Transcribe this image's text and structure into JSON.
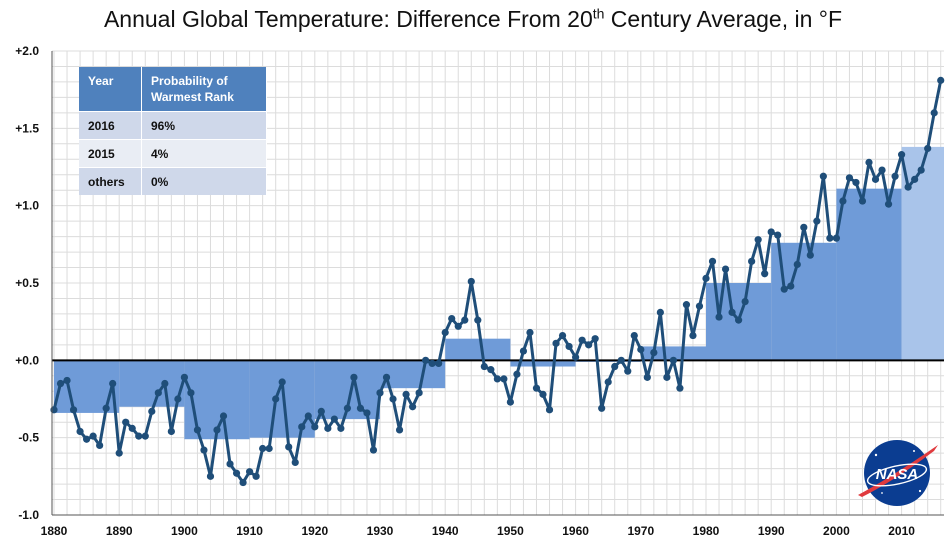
{
  "chart_data": {
    "type": "line",
    "title_main": "Annual Global Temperature: Difference From 20",
    "title_sup": "th",
    "title_end": " Century Average, in °F",
    "xlabel": "",
    "ylabel": "",
    "xlim": [
      1880,
      2016
    ],
    "ylim": [
      -1.0,
      2.0
    ],
    "y_ticks": [
      -1.0,
      -0.5,
      0.0,
      0.5,
      1.0,
      1.5,
      2.0
    ],
    "y_tick_labels": [
      "-1.0",
      "-0.5",
      "+0.0",
      "+0.5",
      "+1.0",
      "+1.5",
      "+2.0"
    ],
    "x_ticks": [
      1880,
      1890,
      1900,
      1910,
      1920,
      1930,
      1940,
      1950,
      1960,
      1970,
      1980,
      1990,
      2000,
      2010
    ],
    "x_tick_labels": [
      "1880",
      "1890",
      "1900",
      "1910",
      "1920",
      "1930",
      "1940",
      "1950",
      "1960",
      "1970",
      "1980",
      "1990",
      "2000",
      "2010"
    ],
    "grid": true,
    "colors": {
      "line": "#1f4e79",
      "bar": "#6f9bd8",
      "bar_light": "#a9c4ea",
      "zero_line": "#000000"
    },
    "decadal_averages": [
      {
        "start": 1880,
        "end": 1890,
        "value": -0.34
      },
      {
        "start": 1890,
        "end": 1900,
        "value": -0.3
      },
      {
        "start": 1900,
        "end": 1910,
        "value": -0.51
      },
      {
        "start": 1910,
        "end": 1920,
        "value": -0.5
      },
      {
        "start": 1920,
        "end": 1930,
        "value": -0.38
      },
      {
        "start": 1930,
        "end": 1940,
        "value": -0.18
      },
      {
        "start": 1940,
        "end": 1950,
        "value": 0.14
      },
      {
        "start": 1950,
        "end": 1960,
        "value": -0.04
      },
      {
        "start": 1960,
        "end": 1970,
        "value": -0.01
      },
      {
        "start": 1970,
        "end": 1980,
        "value": 0.09
      },
      {
        "start": 1980,
        "end": 1990,
        "value": 0.5
      },
      {
        "start": 1990,
        "end": 2000,
        "value": 0.76
      },
      {
        "start": 2000,
        "end": 2010,
        "value": 1.11
      },
      {
        "start": 2010,
        "end": 2017,
        "value": 1.38
      }
    ],
    "annual": {
      "x": [
        1880,
        1881,
        1882,
        1883,
        1884,
        1885,
        1886,
        1887,
        1888,
        1889,
        1890,
        1891,
        1892,
        1893,
        1894,
        1895,
        1896,
        1897,
        1898,
        1899,
        1900,
        1901,
        1902,
        1903,
        1904,
        1905,
        1906,
        1907,
        1908,
        1909,
        1910,
        1911,
        1912,
        1913,
        1914,
        1915,
        1916,
        1917,
        1918,
        1919,
        1920,
        1921,
        1922,
        1923,
        1924,
        1925,
        1926,
        1927,
        1928,
        1929,
        1930,
        1931,
        1932,
        1933,
        1934,
        1935,
        1936,
        1937,
        1938,
        1939,
        1940,
        1941,
        1942,
        1943,
        1944,
        1945,
        1946,
        1947,
        1948,
        1949,
        1950,
        1951,
        1952,
        1953,
        1954,
        1955,
        1956,
        1957,
        1958,
        1959,
        1960,
        1961,
        1962,
        1963,
        1964,
        1965,
        1966,
        1967,
        1968,
        1969,
        1970,
        1971,
        1972,
        1973,
        1974,
        1975,
        1976,
        1977,
        1978,
        1979,
        1980,
        1981,
        1982,
        1983,
        1984,
        1985,
        1986,
        1987,
        1988,
        1989,
        1990,
        1991,
        1992,
        1993,
        1994,
        1995,
        1996,
        1997,
        1998,
        1999,
        2000,
        2001,
        2002,
        2003,
        2004,
        2005,
        2006,
        2007,
        2008,
        2009,
        2010,
        2011,
        2012,
        2013,
        2014,
        2015,
        2016
      ],
      "y": [
        -0.32,
        -0.15,
        -0.13,
        -0.32,
        -0.46,
        -0.51,
        -0.49,
        -0.55,
        -0.31,
        -0.15,
        -0.6,
        -0.4,
        -0.44,
        -0.49,
        -0.49,
        -0.33,
        -0.21,
        -0.15,
        -0.46,
        -0.25,
        -0.11,
        -0.21,
        -0.45,
        -0.58,
        -0.75,
        -0.45,
        -0.36,
        -0.67,
        -0.73,
        -0.79,
        -0.72,
        -0.75,
        -0.57,
        -0.57,
        -0.25,
        -0.14,
        -0.56,
        -0.66,
        -0.43,
        -0.36,
        -0.43,
        -0.33,
        -0.44,
        -0.38,
        -0.44,
        -0.31,
        -0.11,
        -0.31,
        -0.34,
        -0.58,
        -0.21,
        -0.11,
        -0.25,
        -0.45,
        -0.22,
        -0.3,
        -0.21,
        0.0,
        -0.02,
        -0.02,
        0.18,
        0.27,
        0.22,
        0.26,
        0.51,
        0.26,
        -0.04,
        -0.06,
        -0.12,
        -0.12,
        -0.27,
        -0.09,
        0.06,
        0.18,
        -0.18,
        -0.22,
        -0.32,
        0.11,
        0.16,
        0.09,
        0.02,
        0.13,
        0.1,
        0.14,
        -0.31,
        -0.14,
        -0.04,
        0.0,
        -0.07,
        0.16,
        0.07,
        -0.11,
        0.05,
        0.31,
        -0.11,
        0.0,
        -0.18,
        0.36,
        0.16,
        0.35,
        0.53,
        0.64,
        0.28,
        0.59,
        0.31,
        0.26,
        0.38,
        0.64,
        0.78,
        0.56,
        0.83,
        0.81,
        0.46,
        0.48,
        0.62,
        0.86,
        0.68,
        0.9,
        1.19,
        0.79,
        0.79,
        1.03,
        1.18,
        1.15,
        1.03,
        1.28,
        1.17,
        1.23,
        1.01,
        1.19,
        1.33,
        1.12,
        1.17,
        1.23,
        1.37,
        1.6,
        1.81
      ]
    }
  },
  "table": {
    "headers": [
      "Year",
      "Probability of Warmest Rank"
    ],
    "rows": [
      {
        "year": "2016",
        "prob": "96%"
      },
      {
        "year": "2015",
        "prob": "4%"
      },
      {
        "year": "others",
        "prob": "0%"
      }
    ]
  },
  "logo": {
    "text": "NASA",
    "icon": "nasa-meatball-icon",
    "color": "#0b3d91"
  }
}
